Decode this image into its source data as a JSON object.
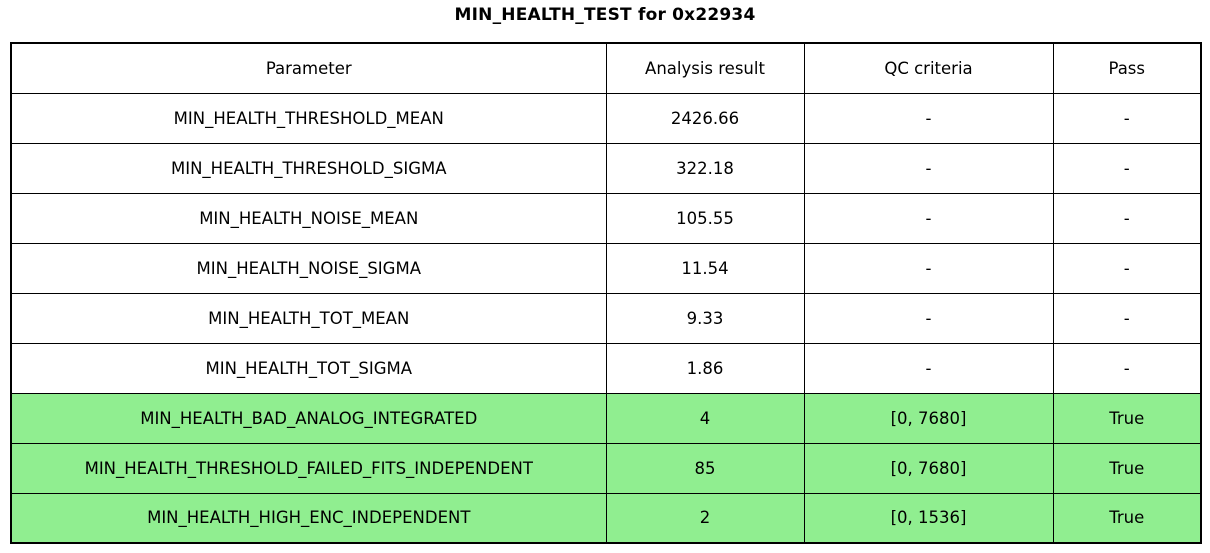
{
  "title": "MIN_HEALTH_TEST for 0x22934",
  "colors": {
    "pass_row_bg": "#90EE90",
    "border": "#000000",
    "background": "#FFFFFF"
  },
  "table": {
    "headers": [
      "Parameter",
      "Analysis result",
      "QC criteria",
      "Pass"
    ],
    "rows": [
      {
        "parameter": "MIN_HEALTH_THRESHOLD_MEAN",
        "result": "2426.66",
        "qc": "-",
        "pass": "-",
        "highlighted": false
      },
      {
        "parameter": "MIN_HEALTH_THRESHOLD_SIGMA",
        "result": "322.18",
        "qc": "-",
        "pass": "-",
        "highlighted": false
      },
      {
        "parameter": "MIN_HEALTH_NOISE_MEAN",
        "result": "105.55",
        "qc": "-",
        "pass": "-",
        "highlighted": false
      },
      {
        "parameter": "MIN_HEALTH_NOISE_SIGMA",
        "result": "11.54",
        "qc": "-",
        "pass": "-",
        "highlighted": false
      },
      {
        "parameter": "MIN_HEALTH_TOT_MEAN",
        "result": "9.33",
        "qc": "-",
        "pass": "-",
        "highlighted": false
      },
      {
        "parameter": "MIN_HEALTH_TOT_SIGMA",
        "result": "1.86",
        "qc": "-",
        "pass": "-",
        "highlighted": false
      },
      {
        "parameter": "MIN_HEALTH_BAD_ANALOG_INTEGRATED",
        "result": "4",
        "qc": "[0, 7680]",
        "pass": "True",
        "highlighted": true
      },
      {
        "parameter": "MIN_HEALTH_THRESHOLD_FAILED_FITS_INDEPENDENT",
        "result": "85",
        "qc": "[0, 7680]",
        "pass": "True",
        "highlighted": true
      },
      {
        "parameter": "MIN_HEALTH_HIGH_ENC_INDEPENDENT",
        "result": "2",
        "qc": "[0, 1536]",
        "pass": "True",
        "highlighted": true
      }
    ]
  },
  "chart_data": {
    "type": "table",
    "title": "MIN_HEALTH_TEST for 0x22934",
    "columns": [
      "Parameter",
      "Analysis result",
      "QC criteria",
      "Pass"
    ],
    "rows": [
      [
        "MIN_HEALTH_THRESHOLD_MEAN",
        2426.66,
        "-",
        "-"
      ],
      [
        "MIN_HEALTH_THRESHOLD_SIGMA",
        322.18,
        "-",
        "-"
      ],
      [
        "MIN_HEALTH_NOISE_MEAN",
        105.55,
        "-",
        "-"
      ],
      [
        "MIN_HEALTH_NOISE_SIGMA",
        11.54,
        "-",
        "-"
      ],
      [
        "MIN_HEALTH_TOT_MEAN",
        9.33,
        "-",
        "-"
      ],
      [
        "MIN_HEALTH_TOT_SIGMA",
        1.86,
        "-",
        "-"
      ],
      [
        "MIN_HEALTH_BAD_ANALOG_INTEGRATED",
        4,
        "[0, 7680]",
        "True"
      ],
      [
        "MIN_HEALTH_THRESHOLD_FAILED_FITS_INDEPENDENT",
        85,
        "[0, 7680]",
        "True"
      ],
      [
        "MIN_HEALTH_HIGH_ENC_INDEPENDENT",
        2,
        "[0, 1536]",
        "True"
      ]
    ],
    "layout_hints": {
      "highlighted_rows": [
        6,
        7,
        8
      ],
      "highlight_color": "#90EE90",
      "cell_text_align": "center",
      "grid": true
    }
  }
}
